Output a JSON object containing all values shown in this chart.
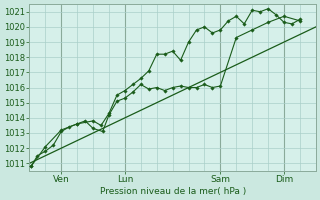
{
  "bg_color": "#cbe8e0",
  "plot_bg_color": "#d6f0ea",
  "grid_color": "#aacfca",
  "line_color": "#1a5c1a",
  "vline_color": "#8aaa9a",
  "xlabel": "Pression niveau de la mer( hPa )",
  "ylim": [
    1010.5,
    1021.5
  ],
  "yticks": [
    1011,
    1012,
    1013,
    1014,
    1015,
    1016,
    1017,
    1018,
    1019,
    1020,
    1021
  ],
  "xtick_labels": [
    "Ven",
    "Lun",
    "Sam",
    "Dim"
  ],
  "xtick_positions": [
    1,
    3,
    6,
    8
  ],
  "xlim": [
    0,
    9
  ],
  "vline_positions": [
    1,
    3,
    6,
    8
  ],
  "trend_x": [
    0.0,
    9.0
  ],
  "trend_y": [
    1011.0,
    1020.0
  ],
  "line1_x": [
    0.05,
    0.25,
    0.5,
    0.75,
    1.0,
    1.25,
    1.5,
    1.75,
    2.0,
    2.3,
    2.5,
    2.75,
    3.0,
    3.25,
    3.5,
    3.75,
    4.0,
    4.25,
    4.5,
    4.75,
    5.0,
    5.25,
    5.5,
    5.75,
    6.0,
    6.5,
    7.0,
    7.5,
    8.0,
    8.5
  ],
  "line1_y": [
    1010.8,
    1011.5,
    1011.8,
    1012.2,
    1013.1,
    1013.4,
    1013.6,
    1013.8,
    1013.3,
    1013.1,
    1014.2,
    1015.1,
    1015.3,
    1015.7,
    1016.2,
    1015.9,
    1016.0,
    1015.8,
    1016.0,
    1016.1,
    1016.0,
    1016.0,
    1016.2,
    1016.0,
    1016.1,
    1019.3,
    1019.8,
    1020.3,
    1020.7,
    1020.4
  ],
  "line2_x": [
    0.05,
    0.5,
    1.0,
    1.5,
    2.0,
    2.25,
    2.5,
    2.75,
    3.0,
    3.25,
    3.5,
    3.75,
    4.0,
    4.25,
    4.5,
    4.75,
    5.0,
    5.25,
    5.5,
    5.75,
    6.0,
    6.25,
    6.5,
    6.75,
    7.0,
    7.25,
    7.5,
    7.75,
    8.0,
    8.25,
    8.5
  ],
  "line2_y": [
    1010.8,
    1012.1,
    1013.2,
    1013.6,
    1013.8,
    1013.5,
    1014.3,
    1015.5,
    1015.8,
    1016.2,
    1016.6,
    1017.1,
    1018.2,
    1018.2,
    1018.4,
    1017.8,
    1019.0,
    1019.8,
    1020.0,
    1019.6,
    1019.8,
    1020.4,
    1020.7,
    1020.2,
    1021.1,
    1021.0,
    1021.2,
    1020.8,
    1020.3,
    1020.2,
    1020.5
  ]
}
